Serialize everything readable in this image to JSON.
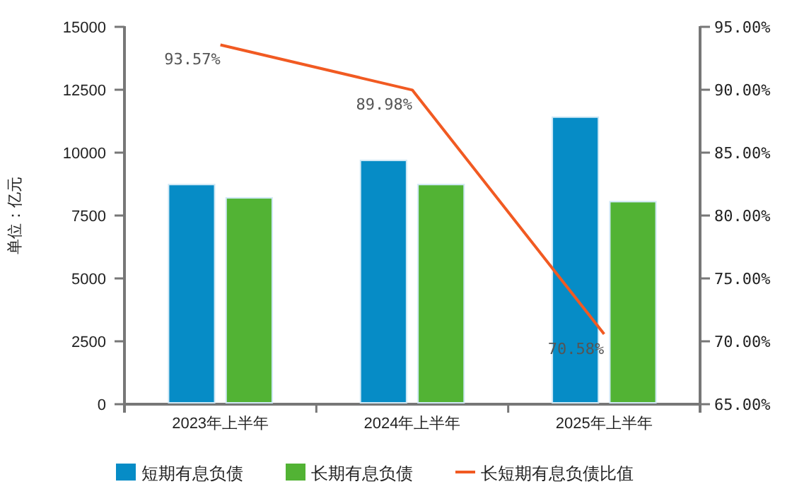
{
  "chart_data": {
    "type": "bar",
    "ylabel": "单位：亿元",
    "categories": [
      "2023年上半年",
      "2024年上半年",
      "2025年上半年"
    ],
    "series": [
      {
        "name": "短期有息负债",
        "color": "#068cc6",
        "values": [
          8730,
          9690,
          11410
        ]
      },
      {
        "name": "长期有息负债",
        "color": "#52b334",
        "values": [
          8200,
          8730,
          8050
        ]
      },
      {
        "name": "长短期有息负债比值",
        "type": "line",
        "axis": "y2",
        "color": "#f15a22",
        "values": [
          93.57,
          89.98,
          70.58
        ],
        "value_labels": [
          "93.57%",
          "89.98%",
          "70.58%"
        ]
      }
    ],
    "ylim": [
      0,
      15000
    ],
    "yticks": [
      0,
      2500,
      5000,
      7500,
      10000,
      12500,
      15000
    ],
    "y2lim": [
      65,
      95
    ],
    "y2ticks": [
      {
        "value": 65,
        "label": "65.00%"
      },
      {
        "value": 70,
        "label": "70.00%"
      },
      {
        "value": 75,
        "label": "75.00%"
      },
      {
        "value": 80,
        "label": "80.00%"
      },
      {
        "value": 85,
        "label": "85.00%"
      },
      {
        "value": 90,
        "label": "90.00%"
      },
      {
        "value": 95,
        "label": "95.00%"
      }
    ],
    "legend": "bottom",
    "marker": "none"
  }
}
